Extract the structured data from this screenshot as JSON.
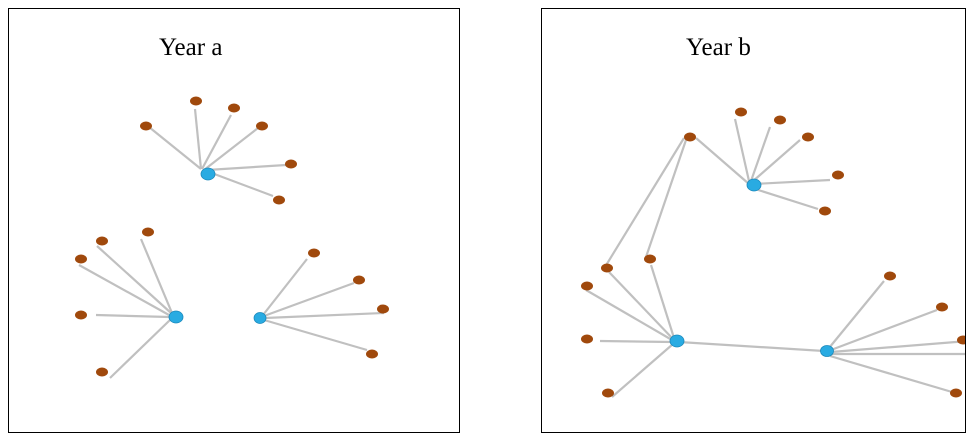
{
  "panels": [
    {
      "title": "Year a"
    },
    {
      "title": "Year b"
    }
  ],
  "colors": {
    "hub": "#29abe2",
    "leaf": "#a0490c",
    "edge": "#c0c0c0",
    "border": "#000000"
  },
  "node_types": [
    "hub",
    "leaf"
  ]
}
